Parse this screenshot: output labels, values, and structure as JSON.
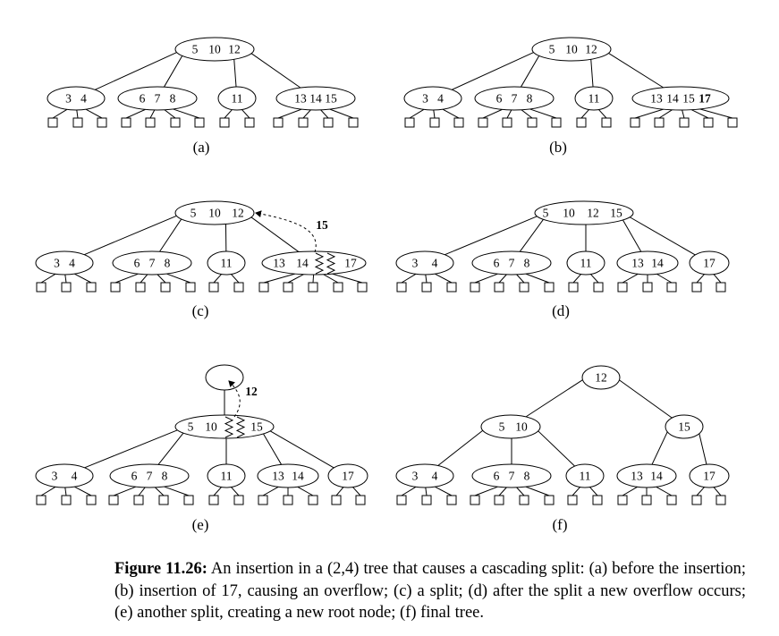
{
  "panels": [
    {
      "label": "(a)",
      "nodes": [
        [
          "5",
          "10",
          "12"
        ],
        [
          "3",
          "4"
        ],
        [
          "6",
          "7",
          "8"
        ],
        [
          "11"
        ],
        [
          "13",
          "14",
          "15"
        ]
      ],
      "bold": []
    },
    {
      "label": "(b)",
      "nodes": [
        [
          "5",
          "10",
          "12"
        ],
        [
          "3",
          "4"
        ],
        [
          "6",
          "7",
          "8"
        ],
        [
          "11"
        ],
        [
          "13",
          "14",
          "15",
          "17"
        ]
      ],
      "bold": [
        "17"
      ]
    },
    {
      "label": "(c)",
      "nodes": [
        [
          "5",
          "10",
          "12"
        ],
        [
          "3",
          "4"
        ],
        [
          "6",
          "7",
          "8"
        ],
        [
          "11"
        ],
        [
          "13",
          "14",
          "17"
        ]
      ],
      "promoted_key": "15"
    },
    {
      "label": "(d)",
      "nodes": [
        [
          "5",
          "10",
          "12",
          "15"
        ],
        [
          "3",
          "4"
        ],
        [
          "6",
          "7",
          "8"
        ],
        [
          "11"
        ],
        [
          "13",
          "14"
        ],
        [
          "17"
        ]
      ]
    },
    {
      "label": "(e)",
      "nodes": [
        [],
        [
          "5",
          "10",
          "15"
        ],
        [
          "3",
          "4"
        ],
        [
          "6",
          "7",
          "8"
        ],
        [
          "11"
        ],
        [
          "13",
          "14"
        ],
        [
          "17"
        ]
      ],
      "promoted_key": "12"
    },
    {
      "label": "(f)",
      "nodes": [
        [
          "12"
        ],
        [
          "5",
          "10"
        ],
        [
          "15"
        ],
        [
          "3",
          "4"
        ],
        [
          "6",
          "7",
          "8"
        ],
        [
          "11"
        ],
        [
          "13",
          "14"
        ],
        [
          "17"
        ]
      ]
    }
  ],
  "caption": {
    "label": "Figure 11.26:",
    "text": "An insertion in a (2,4) tree that causes a cascading split: (a) before the insertion; (b) insertion of 17, causing an overflow; (c) a split; (d) after the split a new overflow occurs; (e) another split, creating a new root node; (f) final tree."
  }
}
